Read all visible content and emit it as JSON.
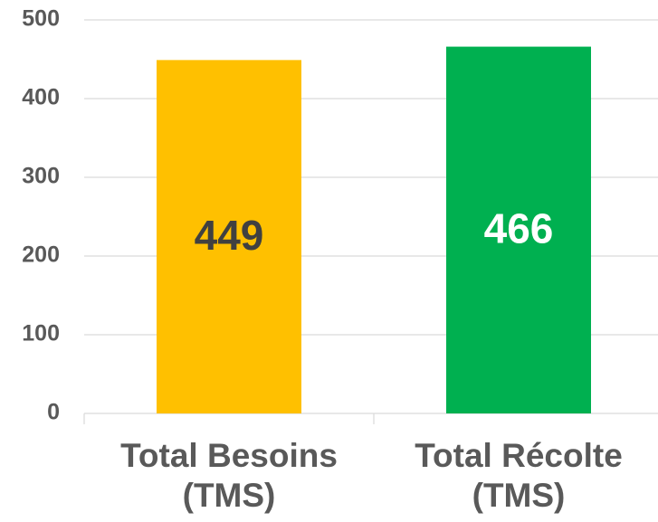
{
  "chart_data": {
    "type": "bar",
    "categories": [
      "Total Besoins (TMS)",
      "Total Récolte (TMS)"
    ],
    "values": [
      449,
      466
    ],
    "colors": [
      "#ffc000",
      "#00b050"
    ],
    "label_colors": [
      "#404040",
      "#ffffff"
    ],
    "ylim": [
      0,
      500
    ],
    "yticks": [
      0,
      100,
      200,
      300,
      400,
      500
    ],
    "grid": true
  }
}
